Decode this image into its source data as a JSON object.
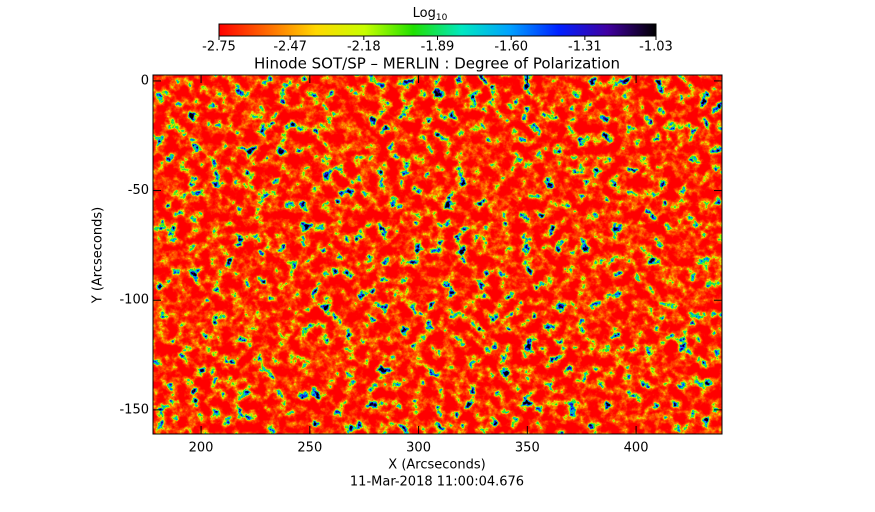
{
  "chart_data": {
    "type": "heatmap",
    "title": "Hinode SOT/SP – MERLIN : Degree of Polarization",
    "x_label": "X (Arcseconds)",
    "y_label": "Y (Arcseconds)",
    "footer": "11-Mar-2018 11:00:04.676",
    "xlim": [
      177.9,
      439.5
    ],
    "ylim": [
      -161,
      2.7
    ],
    "xticks": [
      200,
      250,
      300,
      350,
      400
    ],
    "yticks": [
      0,
      -50,
      -100,
      -150
    ],
    "colorbar": {
      "label": "Log",
      "label_sub": "10",
      "lim": [
        -2.75,
        -1.03
      ],
      "ticks": [
        -2.75,
        -2.47,
        -2.18,
        -1.89,
        {
          "value": -1.6,
          "label": "-1.60"
        },
        -1.31,
        -1.03
      ],
      "colormap": [
        "#ff0000",
        "#ff6a00",
        "#ffd800",
        "#c8ff00",
        "#20e000",
        "#00e8c0",
        "#00a0ff",
        "#0020ff",
        "#4000a0",
        "#000000"
      ]
    }
  }
}
